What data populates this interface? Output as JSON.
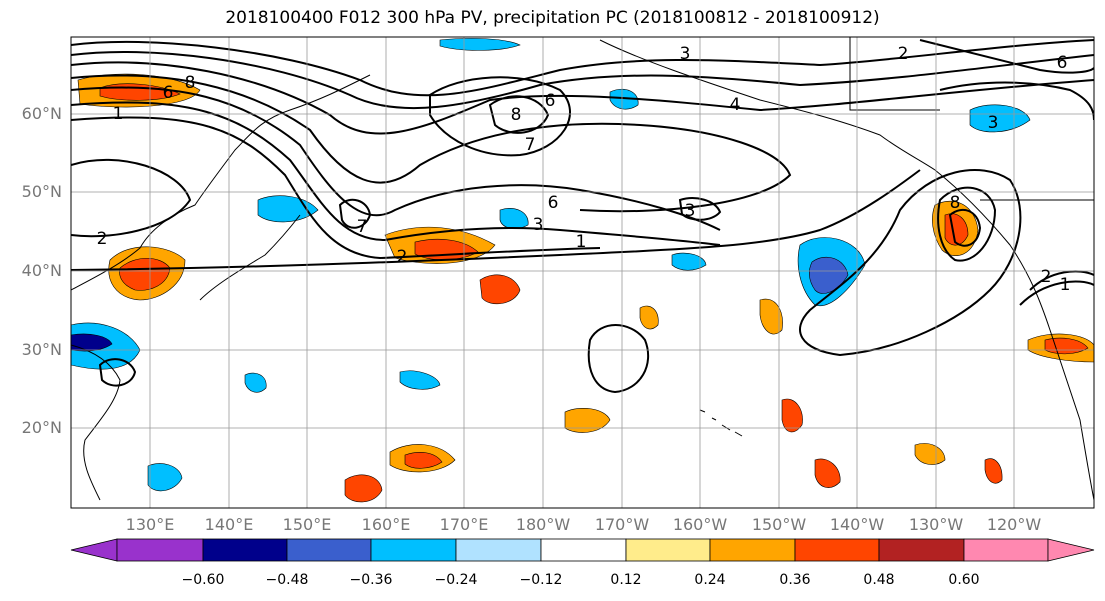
{
  "title": "2018100400 F012 300 hPa PV, precipitation PC (2018100812 - 2018100912)",
  "lat_labels": [
    "60°N",
    "50°N",
    "40°N",
    "30°N",
    "20°N"
  ],
  "lon_labels": [
    "130°E",
    "140°E",
    "150°E",
    "160°E",
    "170°E",
    "180°W",
    "170°W",
    "160°W",
    "150°W",
    "140°W",
    "130°W",
    "120°W"
  ],
  "colorbar": {
    "colors": [
      "#9932CC",
      "#00008B",
      "#3A5FCD",
      "#00BFFF",
      "#B0E2FF",
      "#FFFFFF",
      "#FFEC8B",
      "#FFA500",
      "#FF4500",
      "#B22222",
      "#FF88B0"
    ],
    "ticks": [
      "−0.60",
      "−0.48",
      "−0.36",
      "−0.24",
      "−0.12",
      "0.12",
      "0.24",
      "0.36",
      "0.48",
      "0.60"
    ]
  },
  "contour_labels": [
    "1",
    "2",
    "3",
    "6",
    "8",
    "7",
    "4",
    "1",
    "2",
    "3",
    "6",
    "8",
    "2",
    "3",
    "6",
    "1",
    "2",
    "7",
    "6",
    "8",
    "3"
  ]
}
